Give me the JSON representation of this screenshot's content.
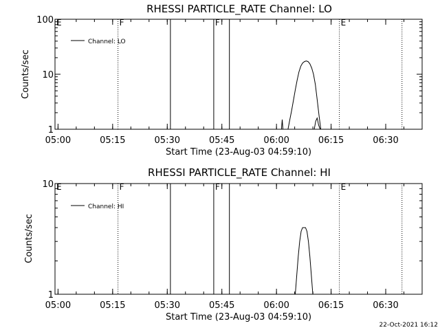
{
  "footer_timestamp": "22-Oct-2021 16:12",
  "chart_data": [
    {
      "type": "line",
      "title": "RHESSI PARTICLE_RATE Channel: LO",
      "xlabel": "Start Time (23-Aug-03 04:59:10)",
      "ylabel": "Counts/sec",
      "yscale": "log",
      "ylim": [
        1,
        100
      ],
      "xlim": [
        0,
        100.83
      ],
      "x_ticks": [
        {
          "t": 0.83,
          "label": "05:00"
        },
        {
          "t": 15.83,
          "label": "05:15"
        },
        {
          "t": 30.83,
          "label": "05:30"
        },
        {
          "t": 45.83,
          "label": "05:45"
        },
        {
          "t": 60.83,
          "label": "06:00"
        },
        {
          "t": 75.83,
          "label": "06:15"
        },
        {
          "t": 90.83,
          "label": "06:30"
        }
      ],
      "y_ticks": [
        {
          "v": 1,
          "label": "1"
        },
        {
          "v": 10,
          "label": "10"
        },
        {
          "v": 100,
          "label": "100"
        }
      ],
      "legend": {
        "position": "top-left",
        "label": "Channel: LO"
      },
      "events": [
        {
          "t": 0,
          "label": "E",
          "style": "dotted"
        },
        {
          "t": 17.3,
          "label": "F",
          "style": "dotted"
        },
        {
          "t": 31.7,
          "label": "",
          "style": "solid"
        },
        {
          "t": 43.6,
          "label": "F",
          "style": "solid"
        },
        {
          "t": 47.9,
          "label": "",
          "style": "solid"
        },
        {
          "t": 78.1,
          "label": "E",
          "style": "dotted"
        },
        {
          "t": 95.3,
          "label": "",
          "style": "dotted"
        }
      ],
      "series": [
        {
          "name": "Channel: LO",
          "segments": [
            [
              [
                62.2,
                1
              ],
              [
                62.4,
                1.5
              ],
              [
                62.6,
                1
              ]
            ],
            [
              [
                64.0,
                1
              ],
              [
                64.5,
                1.5
              ],
              [
                65.0,
                2.2
              ],
              [
                65.5,
                3.4
              ],
              [
                66.0,
                5.2
              ],
              [
                66.5,
                7.8
              ],
              [
                67.0,
                11
              ],
              [
                67.5,
                14
              ],
              [
                68.0,
                16
              ],
              [
                68.5,
                17
              ],
              [
                69.0,
                17.5
              ],
              [
                69.5,
                17
              ],
              [
                70.0,
                15.5
              ],
              [
                70.5,
                13
              ],
              [
                71.0,
                10
              ],
              [
                71.5,
                6.5
              ],
              [
                72.0,
                3.5
              ],
              [
                72.5,
                1.8
              ],
              [
                73.0,
                1
              ]
            ],
            [
              [
                71.2,
                1
              ],
              [
                71.6,
                1.4
              ],
              [
                72.0,
                1.6
              ],
              [
                72.4,
                1.2
              ],
              [
                72.8,
                1
              ]
            ]
          ]
        }
      ]
    },
    {
      "type": "line",
      "title": "RHESSI PARTICLE_RATE Channel: HI",
      "xlabel": "Start Time (23-Aug-03 04:59:10)",
      "ylabel": "Counts/sec",
      "yscale": "log",
      "ylim": [
        1,
        10
      ],
      "xlim": [
        0,
        100.83
      ],
      "x_ticks": [
        {
          "t": 0.83,
          "label": "05:00"
        },
        {
          "t": 15.83,
          "label": "05:15"
        },
        {
          "t": 30.83,
          "label": "05:30"
        },
        {
          "t": 45.83,
          "label": "05:45"
        },
        {
          "t": 60.83,
          "label": "06:00"
        },
        {
          "t": 75.83,
          "label": "06:15"
        },
        {
          "t": 90.83,
          "label": "06:30"
        }
      ],
      "y_ticks": [
        {
          "v": 1,
          "label": "1"
        },
        {
          "v": 10,
          "label": "10"
        }
      ],
      "legend": {
        "position": "top-left",
        "label": "Channel: HI"
      },
      "events": [
        {
          "t": 0,
          "label": "E",
          "style": "dotted"
        },
        {
          "t": 17.3,
          "label": "F",
          "style": "dotted"
        },
        {
          "t": 31.7,
          "label": "",
          "style": "solid"
        },
        {
          "t": 43.6,
          "label": "F",
          "style": "solid"
        },
        {
          "t": 47.9,
          "label": "",
          "style": "solid"
        },
        {
          "t": 78.1,
          "label": "E",
          "style": "dotted"
        },
        {
          "t": 95.3,
          "label": "",
          "style": "dotted"
        }
      ],
      "series": [
        {
          "name": "Channel: HI",
          "segments": [
            [
              [
                66.0,
                1
              ],
              [
                66.4,
                1.5
              ],
              [
                66.8,
                2.2
              ],
              [
                67.2,
                3
              ],
              [
                67.6,
                3.7
              ],
              [
                68.0,
                4
              ],
              [
                68.4,
                4
              ],
              [
                68.8,
                4
              ],
              [
                69.2,
                3.7
              ],
              [
                69.6,
                3
              ],
              [
                70.0,
                2.2
              ],
              [
                70.4,
                1.5
              ],
              [
                70.8,
                1
              ]
            ]
          ]
        }
      ]
    }
  ]
}
